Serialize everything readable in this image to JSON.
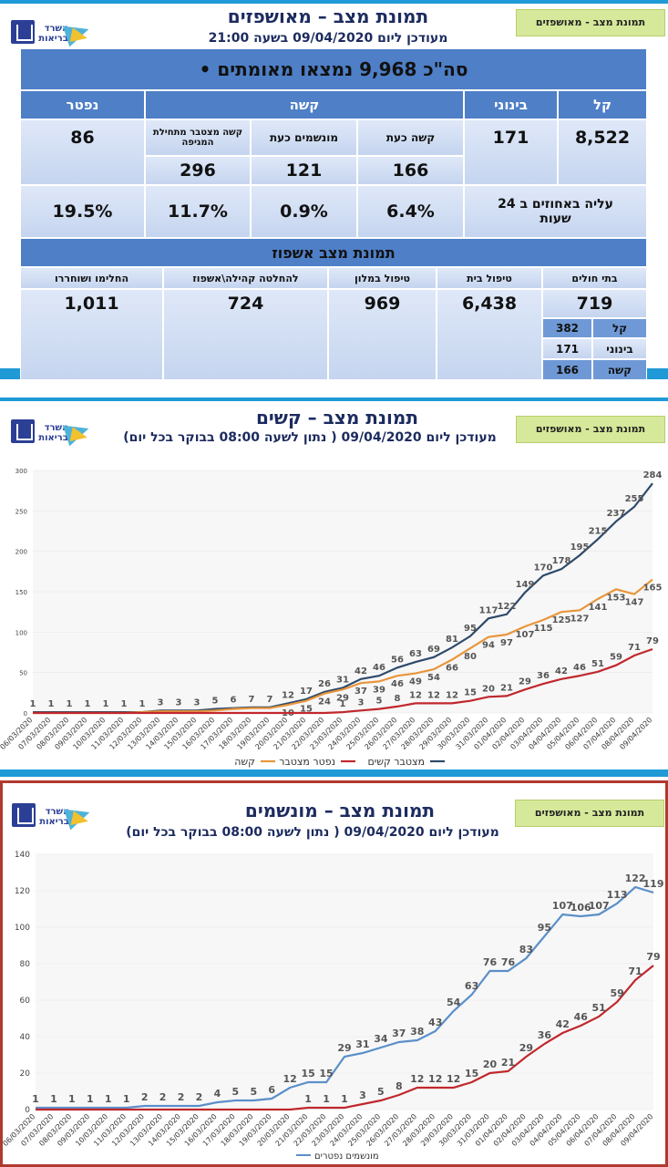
{
  "header_tag": "תמונת מצב - מאושפזים",
  "logo_name": "משרד הבריאות",
  "panel1": {
    "title": "תמונת מצב – מאושפזים",
    "subtitle": "מעודכן ליום 09/04/2020 בשעה 21:00",
    "total": "•  סה\"כ 9,968 נמצאו מאומתים",
    "light_label": "קל",
    "medium_label": "בינוני",
    "severe_label": "קשה",
    "dead_label": "נפטר",
    "light_value": "8,522",
    "medium_value": "171",
    "dead_value": "86",
    "severe_now_label": "קשה כעת",
    "ventilated_now_label": "מונשמים כעת",
    "severe_cum_label": "קשה מצטבר מתחילת המגיפה",
    "severe_now_value": "166",
    "ventilated_now_value": "121",
    "severe_cum_value": "296",
    "increase_label": "עליה באחוזים ב 24 שעות",
    "pct_severe_now": "6.4%",
    "pct_ventilated": "0.9%",
    "pct_severe_cum": "11.7%",
    "pct_dead": "19.5%",
    "hosp_title": "תמונת מצב אשפוז",
    "hospitals_label": "בתי חולים",
    "home_label": "טיפול בית",
    "hotel_label": "טיפול במלון",
    "community_label": "להחלטה קהילה\\אשפוז",
    "recovered_label": "החלימו ושוחררו",
    "hospitals_value": "719",
    "home_value": "6,438",
    "hotel_value": "969",
    "community_value": "724",
    "recovered_value": "1,011",
    "sub_light_label": "קל",
    "sub_medium_label": "בינוני",
    "sub_severe_label": "קשה",
    "sub_light_value": "382",
    "sub_medium_value": "171",
    "sub_severe_value": "166"
  },
  "panel2": {
    "title": "תמונת מצב – קשים",
    "subtitle": "מעודכן ליום 09/04/2020 ( נתון לשעה 08:00 בבוקר בכל יום)"
  },
  "panel3": {
    "title": "תמונת מצב – מונשמים",
    "subtitle": "מעודכן ליום 09/04/2020 ( נתון לשעה 08:00 בבוקר בכל יום)"
  },
  "chart_data": [
    {
      "type": "line",
      "x": [
        "06/03/2020",
        "07/03/2020",
        "08/03/2020",
        "09/03/2020",
        "10/03/2020",
        "11/03/2020",
        "12/03/2020",
        "13/03/2020",
        "14/03/2020",
        "15/03/2020",
        "16/03/2020",
        "17/03/2020",
        "18/03/2020",
        "19/03/2020",
        "20/03/2020",
        "21/03/2020",
        "22/03/2020",
        "23/03/2020",
        "24/03/2020",
        "25/03/2020",
        "26/03/2020",
        "27/03/2020",
        "28/03/2020",
        "29/03/2020",
        "30/03/2020",
        "31/03/2020",
        "01/04/2020",
        "02/04/2020",
        "03/04/2020",
        "04/04/2020",
        "05/04/2020",
        "06/04/2020",
        "07/04/2020",
        "08/04/2020",
        "09/04/2020"
      ],
      "ylim": [
        0,
        300
      ],
      "yticks": [
        0,
        50,
        100,
        150,
        200,
        250,
        300
      ],
      "series": [
        {
          "name": "מצטבר קשים",
          "color": "#2e4a6b",
          "values": [
            1,
            1,
            1,
            1,
            1,
            1,
            1,
            3,
            3,
            3,
            5,
            6,
            7,
            7,
            12,
            17,
            26,
            31,
            42,
            46,
            56,
            63,
            69,
            81,
            95,
            117,
            122,
            149,
            170,
            178,
            195,
            215,
            237,
            255,
            284
          ]
        },
        {
          "name": "קשה",
          "color": "#e8963c",
          "values": [
            0,
            0,
            0,
            0,
            0,
            0,
            1,
            2,
            2,
            2,
            3,
            5,
            6,
            6,
            10,
            15,
            24,
            29,
            37,
            39,
            46,
            49,
            54,
            66,
            80,
            94,
            97,
            107,
            115,
            125,
            127,
            141,
            153,
            147,
            165
          ]
        },
        {
          "name": "נפטר מצטבר",
          "color": "#c0282d",
          "values": [
            0,
            0,
            0,
            0,
            0,
            0,
            0,
            0,
            0,
            0,
            0,
            0,
            0,
            0,
            0,
            0,
            0,
            1,
            3,
            5,
            8,
            12,
            12,
            12,
            15,
            20,
            21,
            29,
            36,
            42,
            46,
            51,
            59,
            71,
            79
          ]
        }
      ],
      "value_labels": {
        "מצטבר קשים": [
          "1",
          "1",
          "1",
          "1",
          "1",
          "1",
          "1",
          "3",
          "3",
          "3",
          "5",
          "6",
          "7",
          "7",
          "12",
          "17",
          "26",
          "31",
          "42",
          "46",
          "56",
          "63",
          "69",
          "81",
          "95",
          "117",
          "122",
          "149",
          "170",
          "178",
          "195",
          "215",
          "237",
          "255",
          "284"
        ],
        "קשה": [
          "",
          "",
          "",
          "",
          "",
          "",
          "",
          "",
          "",
          "",
          "",
          "",
          "",
          "",
          "10",
          "15",
          "24",
          "29",
          "37",
          "39",
          "46",
          "49",
          "54",
          "66",
          "80",
          "94",
          "97",
          "107",
          "115",
          "125",
          "127",
          "141",
          "153",
          "147",
          "165"
        ],
        "נפטר מצטבר": [
          "",
          "",
          "",
          "",
          "",
          "",
          "",
          "",
          "",
          "",
          "",
          "",
          "",
          "",
          "",
          "",
          "",
          "1",
          "3",
          "5",
          "8",
          "12",
          "12",
          "12",
          "15",
          "20",
          "21",
          "29",
          "36",
          "42",
          "46",
          "51",
          "59",
          "71",
          "79"
        ]
      }
    },
    {
      "type": "line",
      "x": [
        "06/03/2020",
        "07/03/2020",
        "08/03/2020",
        "09/03/2020",
        "10/03/2020",
        "11/03/2020",
        "12/03/2020",
        "13/03/2020",
        "14/03/2020",
        "15/03/2020",
        "16/03/2020",
        "17/03/2020",
        "18/03/2020",
        "19/03/2020",
        "20/03/2020",
        "21/03/2020",
        "22/03/2020",
        "23/03/2020",
        "24/03/2020",
        "25/03/2020",
        "26/03/2020",
        "27/03/2020",
        "28/03/2020",
        "29/03/2020",
        "30/03/2020",
        "31/03/2020",
        "01/04/2020",
        "02/04/2020",
        "03/04/2020",
        "04/04/2020",
        "05/04/2020",
        "06/04/2020",
        "07/04/2020",
        "08/04/2020",
        "09/04/2020"
      ],
      "ylim": [
        0,
        140
      ],
      "yticks": [
        0,
        20,
        40,
        60,
        80,
        100,
        120,
        140
      ],
      "series": [
        {
          "name": "מונשמים",
          "color": "#5b8fc9",
          "values": [
            1,
            1,
            1,
            1,
            1,
            1,
            2,
            2,
            2,
            2,
            4,
            5,
            5,
            6,
            12,
            15,
            15,
            29,
            31,
            34,
            37,
            38,
            43,
            54,
            63,
            76,
            76,
            83,
            95,
            107,
            106,
            107,
            113,
            122,
            119
          ]
        },
        {
          "name": "נפטרים",
          "color": "#c0282d",
          "values": [
            0,
            0,
            0,
            0,
            0,
            0,
            0,
            0,
            0,
            0,
            0,
            0,
            0,
            0,
            0,
            1,
            1,
            1,
            3,
            5,
            8,
            12,
            12,
            12,
            15,
            20,
            21,
            29,
            36,
            42,
            46,
            51,
            59,
            71,
            79
          ]
        }
      ],
      "value_labels": {
        "מונשמים": [
          "1",
          "1",
          "1",
          "1",
          "1",
          "1",
          "2",
          "2",
          "2",
          "2",
          "4",
          "5",
          "5",
          "6",
          "12",
          "15",
          "15",
          "29",
          "31",
          "34",
          "37",
          "38",
          "43",
          "54",
          "63",
          "76",
          "76",
          "83",
          "95",
          "107",
          "106",
          "107",
          "113",
          "122",
          "119"
        ],
        "נפטרים": [
          "",
          "",
          "",
          "",
          "",
          "",
          "",
          "",
          "",
          "",
          "",
          "",
          "",
          "",
          "",
          "1",
          "1",
          "1",
          "3",
          "5",
          "8",
          "12",
          "12",
          "12",
          "15",
          "20",
          "21",
          "29",
          "36",
          "42",
          "46",
          "51",
          "59",
          "71",
          "79"
        ]
      },
      "legend_text": "מונשמים נפטרים"
    }
  ],
  "legend_chart1": [
    "מצטבר קשים",
    "נפטר מצטבר",
    "קשה"
  ]
}
